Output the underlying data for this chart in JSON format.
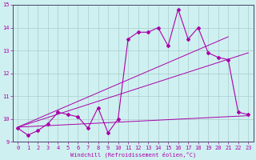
{
  "xlabel": "Windchill (Refroidissement éolien,°C)",
  "bg_color": "#cff0f0",
  "grid_color": "#aacccc",
  "line_color": "#aa00aa",
  "data_x": [
    0,
    1,
    2,
    3,
    4,
    5,
    6,
    7,
    8,
    9,
    10,
    11,
    12,
    13,
    14,
    15,
    16,
    17,
    18,
    19,
    20,
    21,
    22,
    23
  ],
  "data_y": [
    9.6,
    9.3,
    9.5,
    9.8,
    10.3,
    10.2,
    10.1,
    9.6,
    10.5,
    9.4,
    10.0,
    13.5,
    13.8,
    13.8,
    14.0,
    13.2,
    14.8,
    13.5,
    14.0,
    12.9,
    12.7,
    12.6,
    10.3,
    10.2
  ],
  "xlim": [
    -0.5,
    23.5
  ],
  "ylim": [
    9,
    15
  ],
  "yticks": [
    9,
    10,
    11,
    12,
    13,
    14,
    15
  ],
  "xticks": [
    0,
    1,
    2,
    3,
    4,
    5,
    6,
    7,
    8,
    9,
    10,
    11,
    12,
    13,
    14,
    15,
    16,
    17,
    18,
    19,
    20,
    21,
    22,
    23
  ],
  "trend1_x": [
    0,
    23
  ],
  "trend1_y": [
    9.65,
    10.15
  ],
  "trend2_x": [
    0,
    23
  ],
  "trend2_y": [
    9.65,
    12.9
  ],
  "trend3_x": [
    0,
    21
  ],
  "trend3_y": [
    9.65,
    13.6
  ]
}
